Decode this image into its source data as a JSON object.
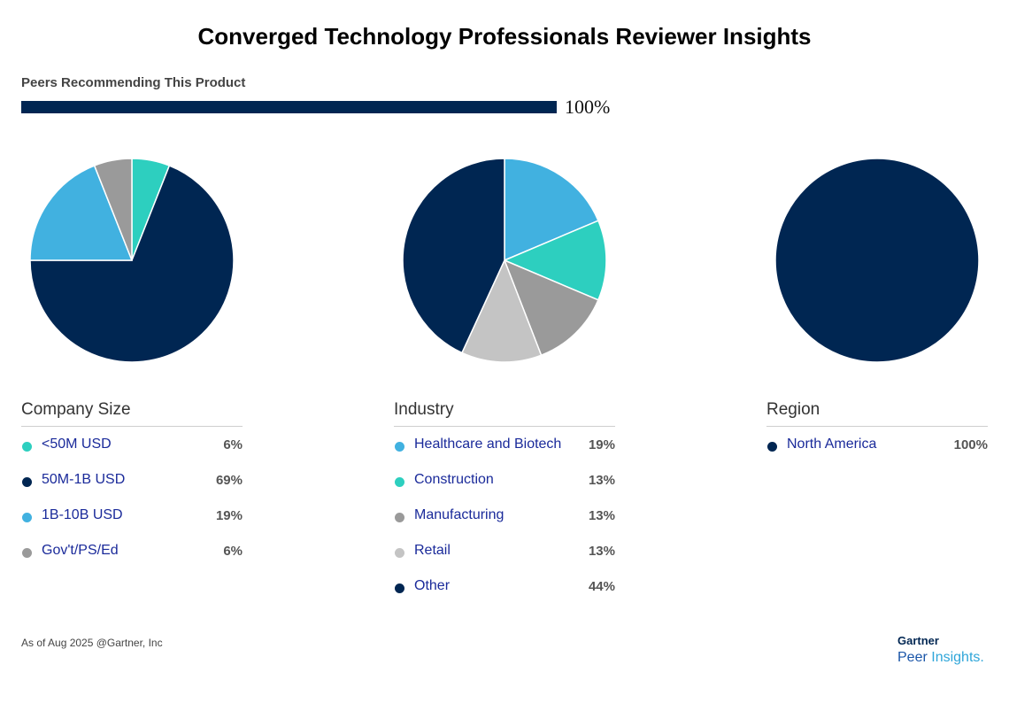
{
  "title": "Converged Technology Professionals Reviewer Insights",
  "recommendation": {
    "label": "Peers Recommending This Product",
    "value_text": "100%",
    "value": 100,
    "bar_color": "#002652"
  },
  "chart_data": [
    {
      "type": "pie",
      "title": "Company Size",
      "slices": [
        {
          "label": "<50M USD",
          "value": 6,
          "value_text": "6%",
          "color": "#2DCFBF"
        },
        {
          "label": "50M-1B USD",
          "value": 69,
          "value_text": "69%",
          "color": "#002652"
        },
        {
          "label": "1B-10B USD",
          "value": 19,
          "value_text": "19%",
          "color": "#41B1E0"
        },
        {
          "label": "Gov't/PS/Ed",
          "value": 6,
          "value_text": "6%",
          "color": "#9A9A9A"
        }
      ]
    },
    {
      "type": "pie",
      "title": "Industry",
      "slices": [
        {
          "label": "Healthcare and Biotech",
          "value": 19,
          "value_text": "19%",
          "color": "#41B1E0"
        },
        {
          "label": "Construction",
          "value": 13,
          "value_text": "13%",
          "color": "#2DCFBF"
        },
        {
          "label": "Manufacturing",
          "value": 13,
          "value_text": "13%",
          "color": "#9A9A9A"
        },
        {
          "label": "Retail",
          "value": 13,
          "value_text": "13%",
          "color": "#C4C4C4"
        },
        {
          "label": "Other",
          "value": 44,
          "value_text": "44%",
          "color": "#002652"
        }
      ]
    },
    {
      "type": "pie",
      "title": "Region",
      "slices": [
        {
          "label": "North America",
          "value": 100,
          "value_text": "100%",
          "color": "#002652"
        }
      ]
    }
  ],
  "footnote": "As of Aug 2025 @Gartner, Inc",
  "brand": {
    "top": "Gartner",
    "bottom_left": "Peer ",
    "bottom_right": "Insights."
  }
}
